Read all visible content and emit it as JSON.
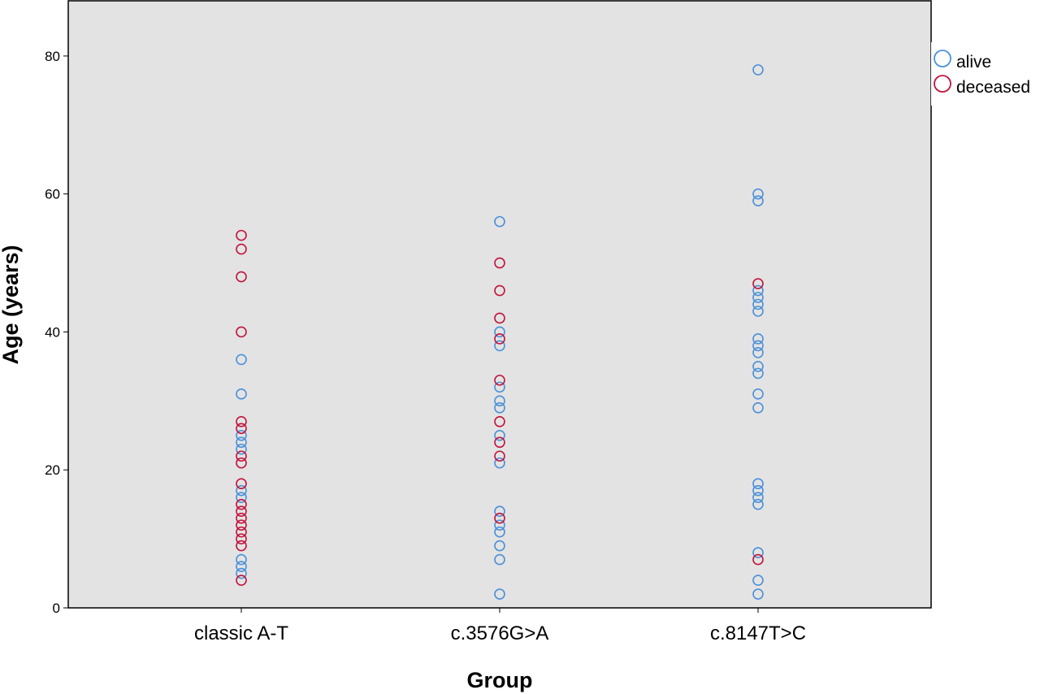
{
  "chart_data": {
    "type": "scatter",
    "xlabel": "Group",
    "ylabel": "Age (years)",
    "categories": [
      "classic A-T",
      "c.3576G>A",
      "c.8147T>C"
    ],
    "ylim": [
      0,
      88
    ],
    "yticks": [
      0,
      20,
      40,
      60,
      80
    ],
    "grid": false,
    "legend_position": "top-right",
    "series": [
      {
        "name": "alive",
        "color": "#4a90d9",
        "marker": "open-circle",
        "points": [
          {
            "category": "classic A-T",
            "values": [
              36,
              31,
              25,
              24,
              23,
              17,
              16,
              7,
              6,
              5
            ]
          },
          {
            "category": "c.3576G>A",
            "values": [
              56,
              40,
              38,
              32,
              30,
              29,
              25,
              21,
              14,
              12,
              11,
              9,
              7,
              2
            ]
          },
          {
            "category": "c.8147T>C",
            "values": [
              78,
              60,
              59,
              46,
              45,
              44,
              43,
              39,
              38,
              37,
              35,
              34,
              31,
              29,
              18,
              17,
              16,
              15,
              8,
              4,
              2
            ]
          }
        ]
      },
      {
        "name": "deceased",
        "color": "#c0143c",
        "marker": "open-circle",
        "points": [
          {
            "category": "classic A-T",
            "values": [
              54,
              52,
              48,
              40,
              27,
              26,
              22,
              21,
              18,
              15,
              14,
              13,
              12,
              11,
              10,
              9,
              4
            ]
          },
          {
            "category": "c.3576G>A",
            "values": [
              50,
              46,
              42,
              39,
              33,
              27,
              24,
              22,
              13
            ]
          },
          {
            "category": "c.8147T>C",
            "values": [
              47,
              7
            ]
          }
        ]
      }
    ]
  }
}
